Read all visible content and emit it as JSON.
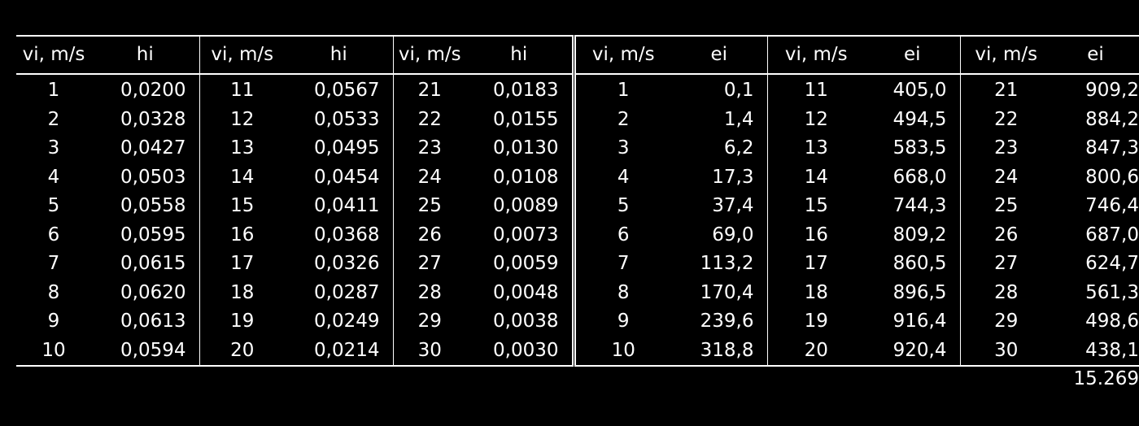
{
  "table": {
    "headers": [
      "vi, m/s",
      "hi",
      "vi, m/s",
      "hi",
      "vi, m/s",
      "hi",
      "vi, m/s",
      "ei",
      "vi, m/s",
      "ei",
      "vi, m/s",
      "ei"
    ],
    "rows": [
      [
        "1",
        "0,0200",
        "11",
        "0,0567",
        "21",
        "0,0183",
        "1",
        "0,1",
        "11",
        "405,0",
        "21",
        "909,2"
      ],
      [
        "2",
        "0,0328",
        "12",
        "0,0533",
        "22",
        "0,0155",
        "2",
        "1,4",
        "12",
        "494,5",
        "22",
        "884,2"
      ],
      [
        "3",
        "0,0427",
        "13",
        "0,0495",
        "23",
        "0,0130",
        "3",
        "6,2",
        "13",
        "583,5",
        "23",
        "847,3"
      ],
      [
        "4",
        "0,0503",
        "14",
        "0,0454",
        "24",
        "0,0108",
        "4",
        "17,3",
        "14",
        "668,0",
        "24",
        "800,6"
      ],
      [
        "5",
        "0,0558",
        "15",
        "0,0411",
        "25",
        "0,0089",
        "5",
        "37,4",
        "15",
        "744,3",
        "25",
        "746,4"
      ],
      [
        "6",
        "0,0595",
        "16",
        "0,0368",
        "26",
        "0,0073",
        "6",
        "69,0",
        "16",
        "809,2",
        "26",
        "687,0"
      ],
      [
        "7",
        "0,0615",
        "17",
        "0,0326",
        "27",
        "0,0059",
        "7",
        "113,2",
        "17",
        "860,5",
        "27",
        "624,7"
      ],
      [
        "8",
        "0,0620",
        "18",
        "0,0287",
        "28",
        "0,0048",
        "8",
        "170,4",
        "18",
        "896,5",
        "28",
        "561,3"
      ],
      [
        "9",
        "0,0613",
        "19",
        "0,0249",
        "29",
        "0,0038",
        "9",
        "239,6",
        "19",
        "916,4",
        "29",
        "498,6"
      ],
      [
        "10",
        "0,0594",
        "20",
        "0,0214",
        "30",
        "0,0030",
        "10",
        "318,8",
        "20",
        "920,4",
        "30",
        "438,1"
      ]
    ],
    "total": "15.269"
  }
}
